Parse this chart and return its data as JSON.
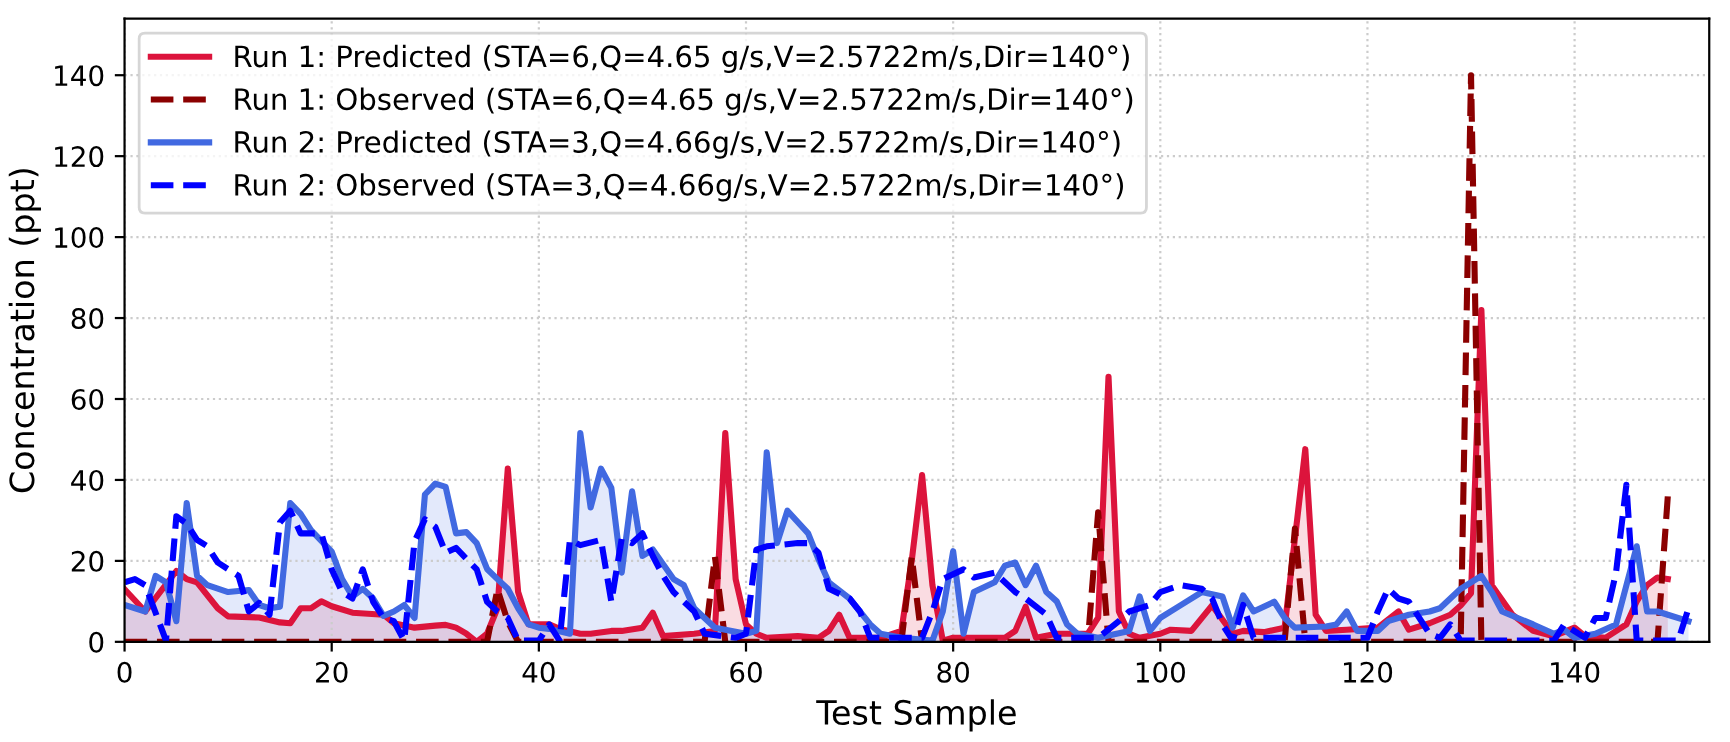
{
  "chart_data": {
    "type": "line",
    "xlabel": "Test Sample",
    "ylabel": "Concentration (ppt)",
    "xlim": [
      0,
      153
    ],
    "ylim": [
      0,
      154
    ],
    "xticks": [
      0,
      20,
      40,
      60,
      80,
      100,
      120,
      140
    ],
    "yticks": [
      0,
      20,
      40,
      60,
      80,
      100,
      120,
      140
    ],
    "grid": true,
    "legend": "top left",
    "series": [
      {
        "name": "Run 1: Predicted (STA=6,Q=4.65 g/s,V=2.5722m/s,Dir=140°)",
        "type": "area",
        "line_style": "solid",
        "color": "#dc143c",
        "x": [
          0,
          2,
          5,
          6,
          7,
          9,
          10,
          13,
          15,
          16,
          17,
          18,
          19,
          20,
          22,
          25,
          26,
          28,
          30,
          31,
          32,
          33,
          34,
          35,
          36,
          37,
          38,
          39,
          41,
          42,
          44,
          45,
          47,
          48,
          50,
          51,
          52,
          55,
          57,
          58,
          59,
          60,
          61,
          62,
          65,
          67,
          68,
          69,
          70,
          73,
          75,
          76,
          77,
          78,
          79,
          80,
          85,
          86,
          87,
          88,
          90,
          93,
          94,
          95,
          96,
          97,
          98,
          100,
          101,
          103,
          105,
          107,
          108,
          110,
          112,
          114,
          115,
          116,
          118,
          121,
          123,
          124,
          126,
          128,
          129,
          130,
          131,
          132,
          134,
          136,
          138,
          140,
          141,
          143,
          145,
          146,
          147,
          148,
          149
        ],
        "values": [
          13,
          7.5,
          17.5,
          15.5,
          14.7,
          8.3,
          6.3,
          6,
          4.8,
          4.6,
          8.3,
          8.3,
          10,
          8.8,
          7.2,
          6.7,
          4.6,
          3.5,
          4,
          4.2,
          3.5,
          2,
          0,
          2,
          8.3,
          42.8,
          12.3,
          4.3,
          4.3,
          3.2,
          2,
          2,
          2.7,
          2.7,
          3.5,
          7.2,
          1.4,
          2,
          2.7,
          51.6,
          15.5,
          4.3,
          2,
          1,
          1.4,
          1,
          2.7,
          6.7,
          1,
          1,
          2.7,
          20,
          41.2,
          14,
          0.3,
          1,
          1,
          2.7,
          8.7,
          1,
          2,
          2,
          6,
          65.5,
          7.5,
          2,
          1,
          2,
          3,
          2.7,
          9,
          2,
          2.7,
          2.4,
          3.5,
          47.6,
          6.7,
          2.7,
          3,
          3.5,
          7.5,
          3,
          4.6,
          6.7,
          9,
          12,
          82,
          14,
          6.7,
          2.7,
          1.4,
          3.5,
          1.4,
          1,
          4.3,
          10,
          14,
          15.9,
          15.5
        ]
      },
      {
        "name": "Run 1: Observed (STA=6,Q=4.65 g/s,V=2.5722m/s,Dir=140°)",
        "line_style": "dashed",
        "color": "#8b0000",
        "x": [
          0,
          35,
          36,
          37,
          38,
          56,
          57,
          58,
          75,
          76,
          77,
          93,
          94,
          95,
          112,
          113,
          114,
          129,
          130,
          131,
          148,
          149
        ],
        "values": [
          0,
          0,
          13,
          5,
          0,
          0,
          21,
          0,
          0,
          21,
          0,
          0,
          32,
          0,
          0,
          28,
          0,
          0,
          140,
          0,
          0,
          36
        ]
      },
      {
        "name": "Run 2: Predicted (STA=3,Q=4.66g/s,V=2.5722m/s,Dir=140°)",
        "type": "area",
        "line_style": "solid",
        "color": "#4169e1",
        "x": [
          0,
          2,
          3,
          4,
          5,
          6,
          7,
          8,
          10,
          12,
          13,
          14,
          15,
          16,
          17,
          18,
          20,
          21,
          22,
          23,
          24,
          25,
          26,
          27,
          28,
          29,
          30,
          31,
          32,
          33,
          34,
          35,
          36,
          37,
          38,
          39,
          40,
          41,
          43,
          44,
          45,
          46,
          47,
          48,
          49,
          50,
          51,
          53,
          54,
          55,
          57,
          60,
          61,
          62,
          63,
          64,
          66,
          67,
          68,
          70,
          71,
          72,
          73,
          75,
          78,
          79,
          80,
          81,
          82,
          84,
          85,
          86,
          87,
          88,
          89,
          90,
          91,
          92,
          94,
          97,
          98,
          99,
          100,
          102,
          104,
          106,
          107,
          108,
          109,
          111,
          112,
          113,
          116,
          117,
          118,
          119,
          121,
          122,
          124,
          126,
          127,
          129,
          130,
          131,
          132,
          133,
          136,
          138,
          139,
          140,
          142,
          144,
          146,
          147,
          148,
          149,
          151
        ],
        "values": [
          9.1,
          7.5,
          16.3,
          14.7,
          5.1,
          34.3,
          16.3,
          14,
          12.3,
          12.8,
          9.1,
          8.3,
          8.7,
          34.3,
          31.6,
          27.6,
          22.3,
          15.5,
          11.2,
          13.1,
          10.7,
          6.4,
          7.5,
          9.1,
          5.9,
          36.4,
          39.1,
          38.3,
          26.8,
          27.1,
          24.4,
          18,
          15.5,
          13.1,
          8.3,
          4.3,
          3.5,
          3.2,
          2,
          51.6,
          33.2,
          42.8,
          38,
          17.1,
          37.2,
          21.2,
          22.8,
          15.5,
          14,
          8.3,
          3.5,
          2,
          2.7,
          46.8,
          24.4,
          32.4,
          26.8,
          20.4,
          14.7,
          10.7,
          7.5,
          4.3,
          2,
          1,
          0.3,
          7.5,
          22.4,
          2,
          12.3,
          14.7,
          18.8,
          19.6,
          14,
          18.8,
          12.3,
          10,
          4.3,
          2,
          1,
          2.7,
          11.2,
          2.7,
          5.9,
          9.1,
          12.3,
          11.2,
          3.5,
          11.5,
          7.5,
          9.9,
          5.9,
          3.5,
          3.8,
          4.3,
          7.5,
          2.7,
          2.7,
          5.1,
          6.7,
          7.5,
          8.3,
          13.1,
          14.7,
          16.3,
          12.3,
          7.5,
          4.3,
          2,
          3,
          1,
          2,
          4.3,
          23.6,
          7.5,
          7.5,
          6.7,
          5.1
        ]
      },
      {
        "name": "Run 2: Observed (STA=3,Q=4.66g/s,V=2.5722m/s,Dir=140°)",
        "line_style": "dashed",
        "color": "#0000ff",
        "x": [
          0,
          1,
          2,
          4,
          5,
          6,
          7,
          8,
          9,
          11,
          12,
          13,
          14,
          15,
          16,
          17,
          19,
          20,
          21,
          22,
          23,
          24,
          25,
          26,
          27,
          28,
          29,
          30,
          31,
          32,
          34,
          35,
          36,
          37,
          38,
          40,
          41,
          42,
          43,
          44,
          46,
          47,
          48,
          49,
          50,
          51,
          52,
          53,
          55,
          56,
          59,
          60,
          61,
          62,
          65,
          66,
          67,
          68,
          70,
          71,
          72,
          77,
          78,
          79,
          81,
          82,
          84,
          86,
          87,
          89,
          90,
          94,
          96,
          97,
          99,
          100,
          102,
          104,
          105,
          106,
          107,
          108,
          109,
          120,
          121,
          122,
          123,
          124,
          126,
          127,
          128,
          129,
          138,
          139,
          141,
          142,
          143,
          144,
          145,
          146,
          150,
          151
        ],
        "values": [
          14.7,
          15.5,
          14,
          0.3,
          31,
          29.2,
          25.2,
          23.6,
          19.6,
          16.3,
          7.5,
          9.6,
          6.7,
          29.5,
          32.4,
          26.8,
          26.8,
          17.9,
          12.3,
          10.7,
          17.9,
          9.9,
          5.9,
          5.1,
          0.3,
          24.8,
          30.3,
          28.4,
          22,
          23.2,
          17.9,
          9.9,
          7.5,
          5.9,
          0.3,
          0.3,
          4.3,
          0.3,
          25.2,
          23.9,
          25.2,
          9.9,
          25.5,
          24.4,
          26.8,
          21.2,
          16.3,
          12.3,
          7.5,
          2,
          1,
          2,
          22.8,
          23.6,
          24.4,
          24.4,
          22,
          13.1,
          10.7,
          7.5,
          1,
          1,
          7.5,
          15.5,
          17.9,
          15.9,
          17.1,
          12.3,
          10.7,
          6.7,
          1,
          1,
          5.1,
          7.5,
          9.1,
          12.3,
          14,
          13.1,
          10.7,
          4.3,
          0.3,
          9.1,
          1,
          1,
          7.5,
          13.1,
          10.7,
          9.9,
          2,
          1,
          4.3,
          0.3,
          0.3,
          4.3,
          1,
          5.9,
          5.9,
          17.1,
          38.8,
          0.3,
          0.3,
          8.3
        ]
      }
    ]
  }
}
